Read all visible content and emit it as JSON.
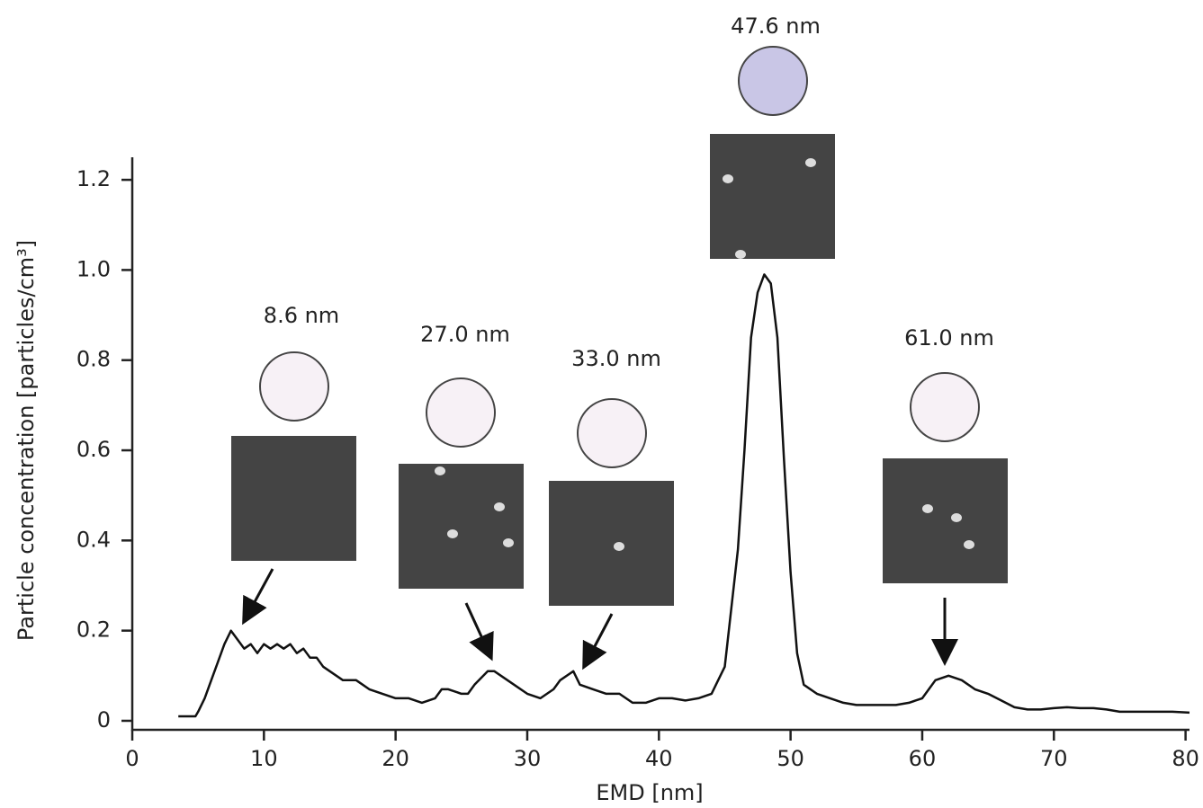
{
  "chart_data": {
    "type": "line",
    "x_label": "EMD [nm]",
    "y_label": "Particle concentration [particles/cm³]",
    "xlim": [
      0,
      80.3
    ],
    "ylim": [
      -0.02,
      1.25
    ],
    "xticks": [
      0,
      10,
      20,
      30,
      40,
      50,
      60,
      70,
      80
    ],
    "yticks": [
      0,
      0.2,
      0.4,
      0.6,
      0.8,
      {
        "value": 1,
        "label": "1.0"
      },
      1.2
    ],
    "annotations": [
      "8.6 nm",
      "27.0 nm",
      "33.0 nm",
      "47.6 nm",
      "61.0 nm"
    ],
    "series": [
      {
        "color": "#111111",
        "x": [
          3.5,
          4.8,
          5,
          5.5,
          6,
          6.5,
          7,
          7.5,
          8,
          8.5,
          9,
          9.5,
          10,
          10.5,
          11,
          11.5,
          12,
          12.5,
          13,
          13.5,
          14,
          14.5,
          15,
          15.5,
          16,
          17,
          17.5,
          18,
          19,
          20,
          21,
          22,
          23,
          23.5,
          24,
          25,
          25.5,
          26,
          27,
          27.5,
          28,
          29,
          30,
          31,
          32,
          32.5,
          33.5,
          34,
          35,
          36,
          37,
          38,
          39,
          40,
          41,
          42,
          43,
          44,
          45,
          46,
          46.5,
          47,
          47.5,
          48,
          48.5,
          49,
          49.5,
          50,
          50.5,
          51,
          52,
          53,
          54,
          55,
          56,
          57,
          58,
          59,
          60,
          61,
          62,
          63,
          64,
          65,
          66,
          67,
          68,
          69,
          70,
          71,
          72,
          73,
          74,
          75,
          76,
          77,
          78,
          79,
          80.3
        ],
        "values": [
          0.01,
          0.01,
          0.02,
          0.05,
          0.09,
          0.13,
          0.17,
          0.2,
          0.18,
          0.16,
          0.17,
          0.15,
          0.17,
          0.16,
          0.17,
          0.16,
          0.17,
          0.15,
          0.16,
          0.14,
          0.14,
          0.12,
          0.11,
          0.1,
          0.09,
          0.09,
          0.08,
          0.07,
          0.06,
          0.05,
          0.05,
          0.04,
          0.05,
          0.07,
          0.07,
          0.06,
          0.06,
          0.08,
          0.11,
          0.11,
          0.1,
          0.08,
          0.06,
          0.05,
          0.07,
          0.09,
          0.11,
          0.08,
          0.07,
          0.06,
          0.06,
          0.04,
          0.04,
          0.05,
          0.05,
          0.045,
          0.05,
          0.06,
          0.12,
          0.38,
          0.6,
          0.85,
          0.95,
          0.99,
          0.97,
          0.85,
          0.58,
          0.33,
          0.15,
          0.08,
          0.06,
          0.05,
          0.04,
          0.035,
          0.035,
          0.035,
          0.035,
          0.04,
          0.05,
          0.09,
          0.1,
          0.09,
          0.07,
          0.06,
          0.045,
          0.03,
          0.025,
          0.025,
          0.028,
          0.03,
          0.028,
          0.028,
          0.025,
          0.02,
          0.02,
          0.02,
          0.02,
          0.02,
          0.018
        ]
      }
    ]
  }
}
